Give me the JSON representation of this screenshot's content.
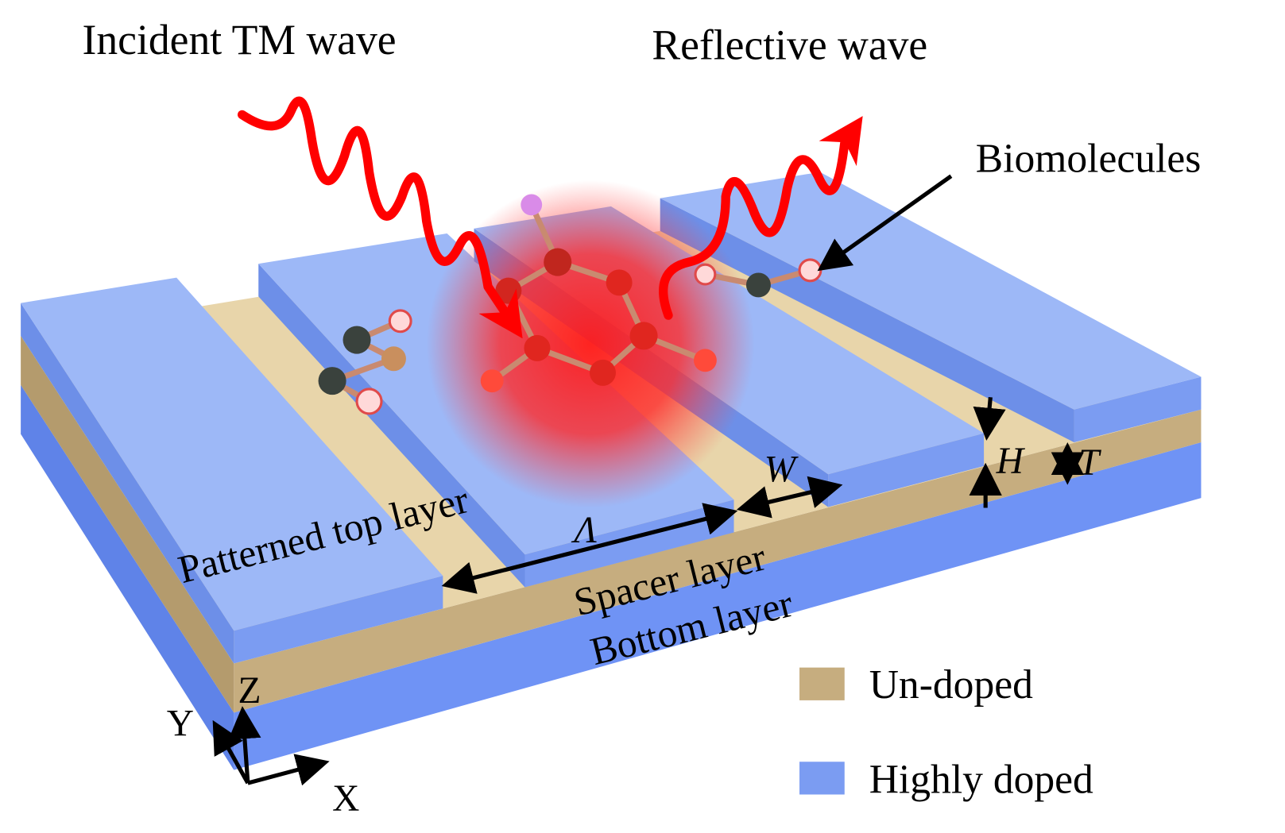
{
  "labels": {
    "incident_wave": "Incident TM wave",
    "reflective_wave": "Reflective wave",
    "biomolecules": "Biomolecules",
    "patterned_top_layer": "Patterned top layer",
    "spacer_layer": "Spacer layer",
    "bottom_layer": "Bottom layer"
  },
  "dimensions": {
    "period": "Λ",
    "width": "W",
    "height": "H",
    "thickness": "T"
  },
  "legend": [
    {
      "label": "Un-doped"
    },
    {
      "label": "Highly doped"
    }
  ],
  "axes": {
    "z": "Z",
    "y": "Y",
    "x": "X"
  }
}
